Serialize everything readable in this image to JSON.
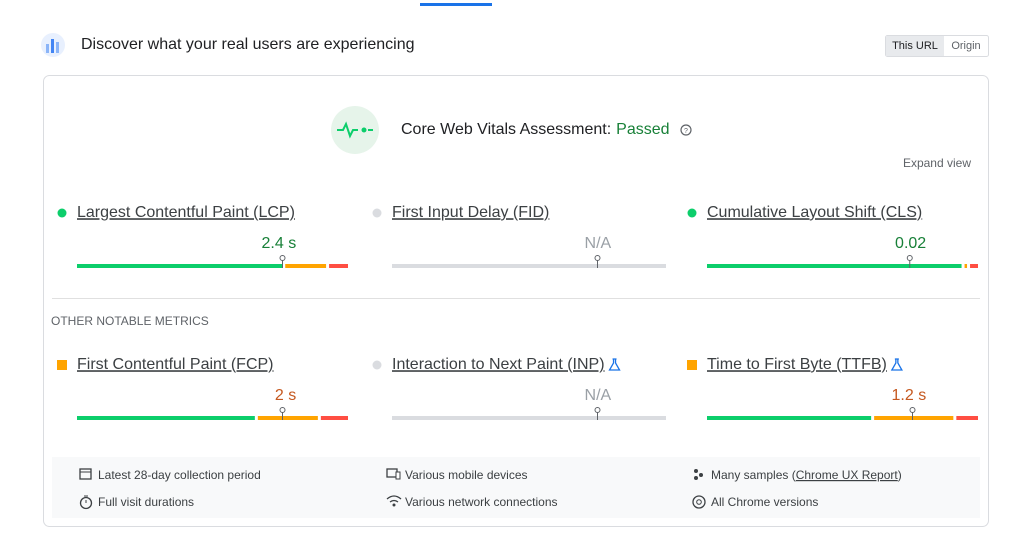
{
  "header": {
    "title": "Discover what your real users are experiencing",
    "tabs": [
      "This URL",
      "Origin"
    ]
  },
  "assessment": {
    "label": "Core Web Vitals Assessment:",
    "status": "Passed",
    "expand": "Expand view"
  },
  "core_metrics": [
    {
      "name": "Largest Contentful Paint (LCP)",
      "value": "2.4 s",
      "rating": "good",
      "distribution": [
        76,
        16,
        8
      ],
      "marker": 75,
      "experimental": false
    },
    {
      "name": "First Input Delay (FID)",
      "value": "N/A",
      "rating": "none",
      "distribution": [],
      "marker": 75,
      "experimental": false
    },
    {
      "name": "Cumulative Layout Shift (CLS)",
      "value": "0.02",
      "rating": "good",
      "distribution": [
        94,
        2,
        4
      ],
      "marker": 74,
      "experimental": false
    }
  ],
  "other_heading": "OTHER NOTABLE METRICS",
  "other_metrics": [
    {
      "name": "First Contentful Paint (FCP)",
      "value": "2 s",
      "rating": "average",
      "distribution": [
        66,
        23,
        11
      ],
      "marker": 75,
      "experimental": false
    },
    {
      "name": "Interaction to Next Paint (INP)",
      "value": "N/A",
      "rating": "none",
      "distribution": [],
      "marker": 75,
      "experimental": true
    },
    {
      "name": "Time to First Byte (TTFB)",
      "value": "1.2 s",
      "rating": "average",
      "distribution": [
        61,
        30,
        9
      ],
      "marker": 75,
      "experimental": true
    }
  ],
  "footer": [
    {
      "icon": "calendar",
      "text": "Latest 28-day collection period"
    },
    {
      "icon": "devices",
      "text": "Various mobile devices"
    },
    {
      "icon": "samples",
      "text": "Many samples (",
      "link": "Chrome UX Report",
      "suffix": ")"
    },
    {
      "icon": "timer",
      "text": "Full visit durations"
    },
    {
      "icon": "wifi",
      "text": "Various network connections"
    },
    {
      "icon": "chrome",
      "text": "All Chrome versions"
    }
  ]
}
